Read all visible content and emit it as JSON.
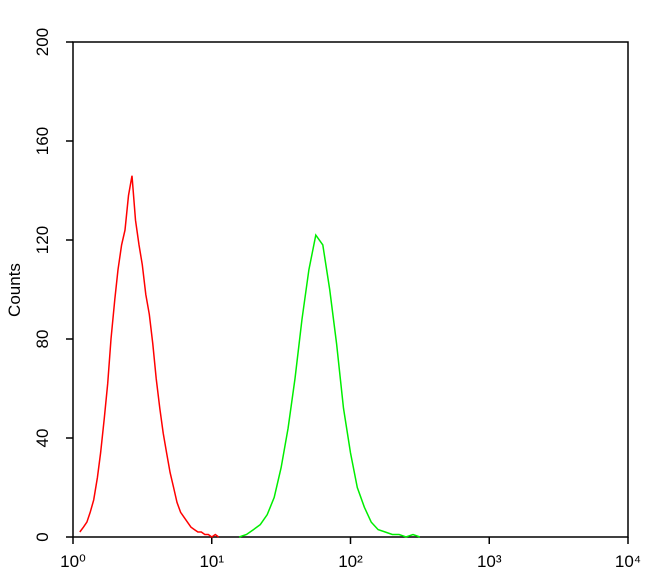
{
  "chart_data": {
    "type": "line",
    "ylabel": "Counts",
    "xscale": "log",
    "xlim": [
      1,
      10000
    ],
    "xticks": [
      {
        "value": 1,
        "label": "10⁰"
      },
      {
        "value": 10,
        "label": "10¹"
      },
      {
        "value": 100,
        "label": "10²"
      },
      {
        "value": 1000,
        "label": "10³"
      },
      {
        "value": 10000,
        "label": "10⁴"
      }
    ],
    "ylim": [
      0,
      200
    ],
    "yticks": [
      0,
      40,
      80,
      120,
      160,
      200
    ],
    "series": [
      {
        "color": "#ff0000",
        "x": [
          1.12,
          1.19,
          1.26,
          1.33,
          1.41,
          1.5,
          1.58,
          1.68,
          1.78,
          1.88,
          2,
          2.11,
          2.24,
          2.37,
          2.51,
          2.66,
          2.82,
          2.99,
          3.16,
          3.35,
          3.55,
          3.76,
          3.98,
          4.22,
          4.47,
          4.73,
          5.01,
          5.31,
          5.62,
          5.96,
          6.31,
          6.68,
          7.08,
          7.5,
          7.94,
          8.41,
          8.91,
          9.44,
          10,
          10.6,
          11.2
        ],
        "values": [
          2,
          4,
          6,
          10,
          15,
          24,
          34,
          48,
          62,
          80,
          96,
          108,
          118,
          124,
          138,
          146,
          128,
          118,
          110,
          98,
          90,
          78,
          64,
          52,
          42,
          34,
          26,
          20,
          14,
          10,
          8,
          6,
          4,
          3,
          2,
          2,
          1,
          1,
          0,
          1,
          0
        ]
      },
      {
        "color": "#00ee00",
        "x": [
          15.8,
          17.8,
          20,
          22.4,
          25.1,
          28.2,
          31.6,
          35.5,
          39.8,
          44.7,
          50.1,
          56.2,
          63.1,
          70.8,
          79.4,
          89.1,
          100,
          112,
          126,
          141,
          158,
          178,
          200,
          224,
          251,
          282,
          316
        ],
        "values": [
          0,
          1,
          3,
          5,
          9,
          16,
          28,
          44,
          64,
          88,
          108,
          122,
          118,
          100,
          78,
          52,
          34,
          20,
          12,
          6,
          3,
          2,
          1,
          1,
          0,
          1,
          0
        ]
      }
    ]
  }
}
